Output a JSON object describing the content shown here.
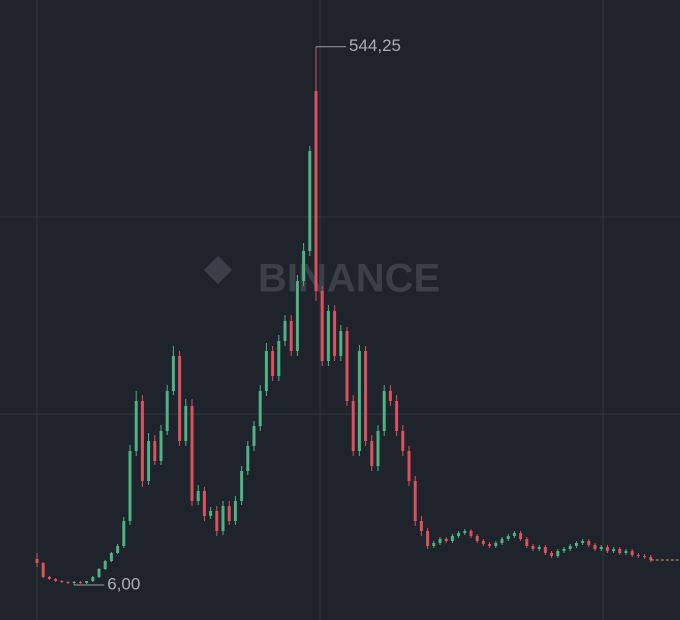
{
  "chart_data": {
    "type": "candlestick",
    "watermark": "BINANCE",
    "up_color": "#4fb283",
    "down_color": "#d9525e",
    "ylim": [
      -29,
      591
    ],
    "open": [
      32,
      28,
      14,
      12,
      10,
      9,
      8,
      9,
      8,
      10,
      14,
      22,
      30,
      38,
      45,
      70,
      140,
      190,
      110,
      150,
      130,
      160,
      200,
      235,
      150,
      185,
      90,
      100,
      75,
      80,
      60,
      85,
      70,
      90,
      120,
      145,
      165,
      200,
      240,
      215,
      250,
      270,
      240,
      310,
      340,
      500,
      300,
      230,
      280,
      235,
      260,
      190,
      140,
      240,
      150,
      125,
      160,
      200,
      190,
      160,
      140,
      110,
      70,
      60,
      45,
      48,
      52,
      50,
      55,
      58,
      60,
      55,
      50,
      47,
      45,
      48,
      52,
      55,
      58,
      52,
      45,
      42,
      44,
      38,
      35,
      40,
      42,
      45,
      48,
      50,
      46,
      42,
      44,
      40,
      42,
      38,
      40,
      36,
      35,
      34
    ],
    "high": [
      38,
      29,
      15,
      13,
      11,
      10,
      10,
      10,
      10,
      15,
      23,
      31,
      39,
      47,
      74,
      146,
      200,
      196,
      158,
      156,
      166,
      206,
      245,
      240,
      192,
      192,
      106,
      104,
      84,
      85,
      90,
      90,
      95,
      125,
      150,
      170,
      206,
      248,
      245,
      256,
      276,
      276,
      316,
      348,
      445,
      544.25,
      305,
      286,
      286,
      266,
      264,
      196,
      246,
      245,
      156,
      166,
      206,
      206,
      196,
      166,
      145,
      115,
      75,
      63,
      50,
      54,
      54,
      57,
      60,
      62,
      62,
      57,
      52,
      49,
      50,
      54,
      57,
      60,
      60,
      54,
      47,
      46,
      46,
      40,
      42,
      44,
      47,
      50,
      52,
      52,
      48,
      46,
      46,
      44,
      44,
      42,
      42,
      38,
      37,
      36
    ],
    "low": [
      24,
      13,
      11,
      9,
      8,
      7,
      6,
      7,
      7,
      9,
      13,
      21,
      29,
      37,
      43,
      66,
      135,
      104,
      106,
      126,
      126,
      156,
      196,
      145,
      145,
      85,
      86,
      70,
      72,
      55,
      56,
      66,
      66,
      86,
      116,
      140,
      160,
      195,
      210,
      210,
      245,
      235,
      235,
      305,
      335,
      290,
      225,
      225,
      230,
      230,
      185,
      135,
      135,
      145,
      120,
      120,
      155,
      185,
      155,
      135,
      105,
      65,
      55,
      42,
      43,
      46,
      48,
      48,
      53,
      56,
      53,
      48,
      45,
      43,
      43,
      46,
      50,
      53,
      50,
      43,
      40,
      40,
      36,
      33,
      33,
      38,
      40,
      43,
      46,
      44,
      40,
      40,
      38,
      38,
      36,
      36,
      34,
      33,
      32,
      29
    ],
    "close": [
      28,
      14,
      12,
      10,
      9,
      8,
      9,
      8,
      10,
      14,
      22,
      30,
      38,
      45,
      70,
      140,
      190,
      110,
      150,
      130,
      160,
      200,
      235,
      150,
      185,
      90,
      100,
      75,
      80,
      60,
      85,
      70,
      90,
      120,
      145,
      165,
      200,
      240,
      215,
      250,
      270,
      240,
      310,
      340,
      440,
      300,
      230,
      280,
      235,
      260,
      190,
      140,
      240,
      150,
      125,
      160,
      200,
      190,
      160,
      140,
      110,
      70,
      60,
      45,
      48,
      52,
      50,
      55,
      58,
      60,
      55,
      50,
      47,
      45,
      48,
      52,
      55,
      58,
      52,
      45,
      42,
      44,
      38,
      35,
      40,
      42,
      45,
      48,
      50,
      46,
      42,
      44,
      40,
      42,
      38,
      40,
      36,
      35,
      34,
      31
    ],
    "annotations": [
      {
        "value": 544.25,
        "label": "544,25"
      },
      {
        "value": 6,
        "label": "6,00"
      }
    ]
  }
}
